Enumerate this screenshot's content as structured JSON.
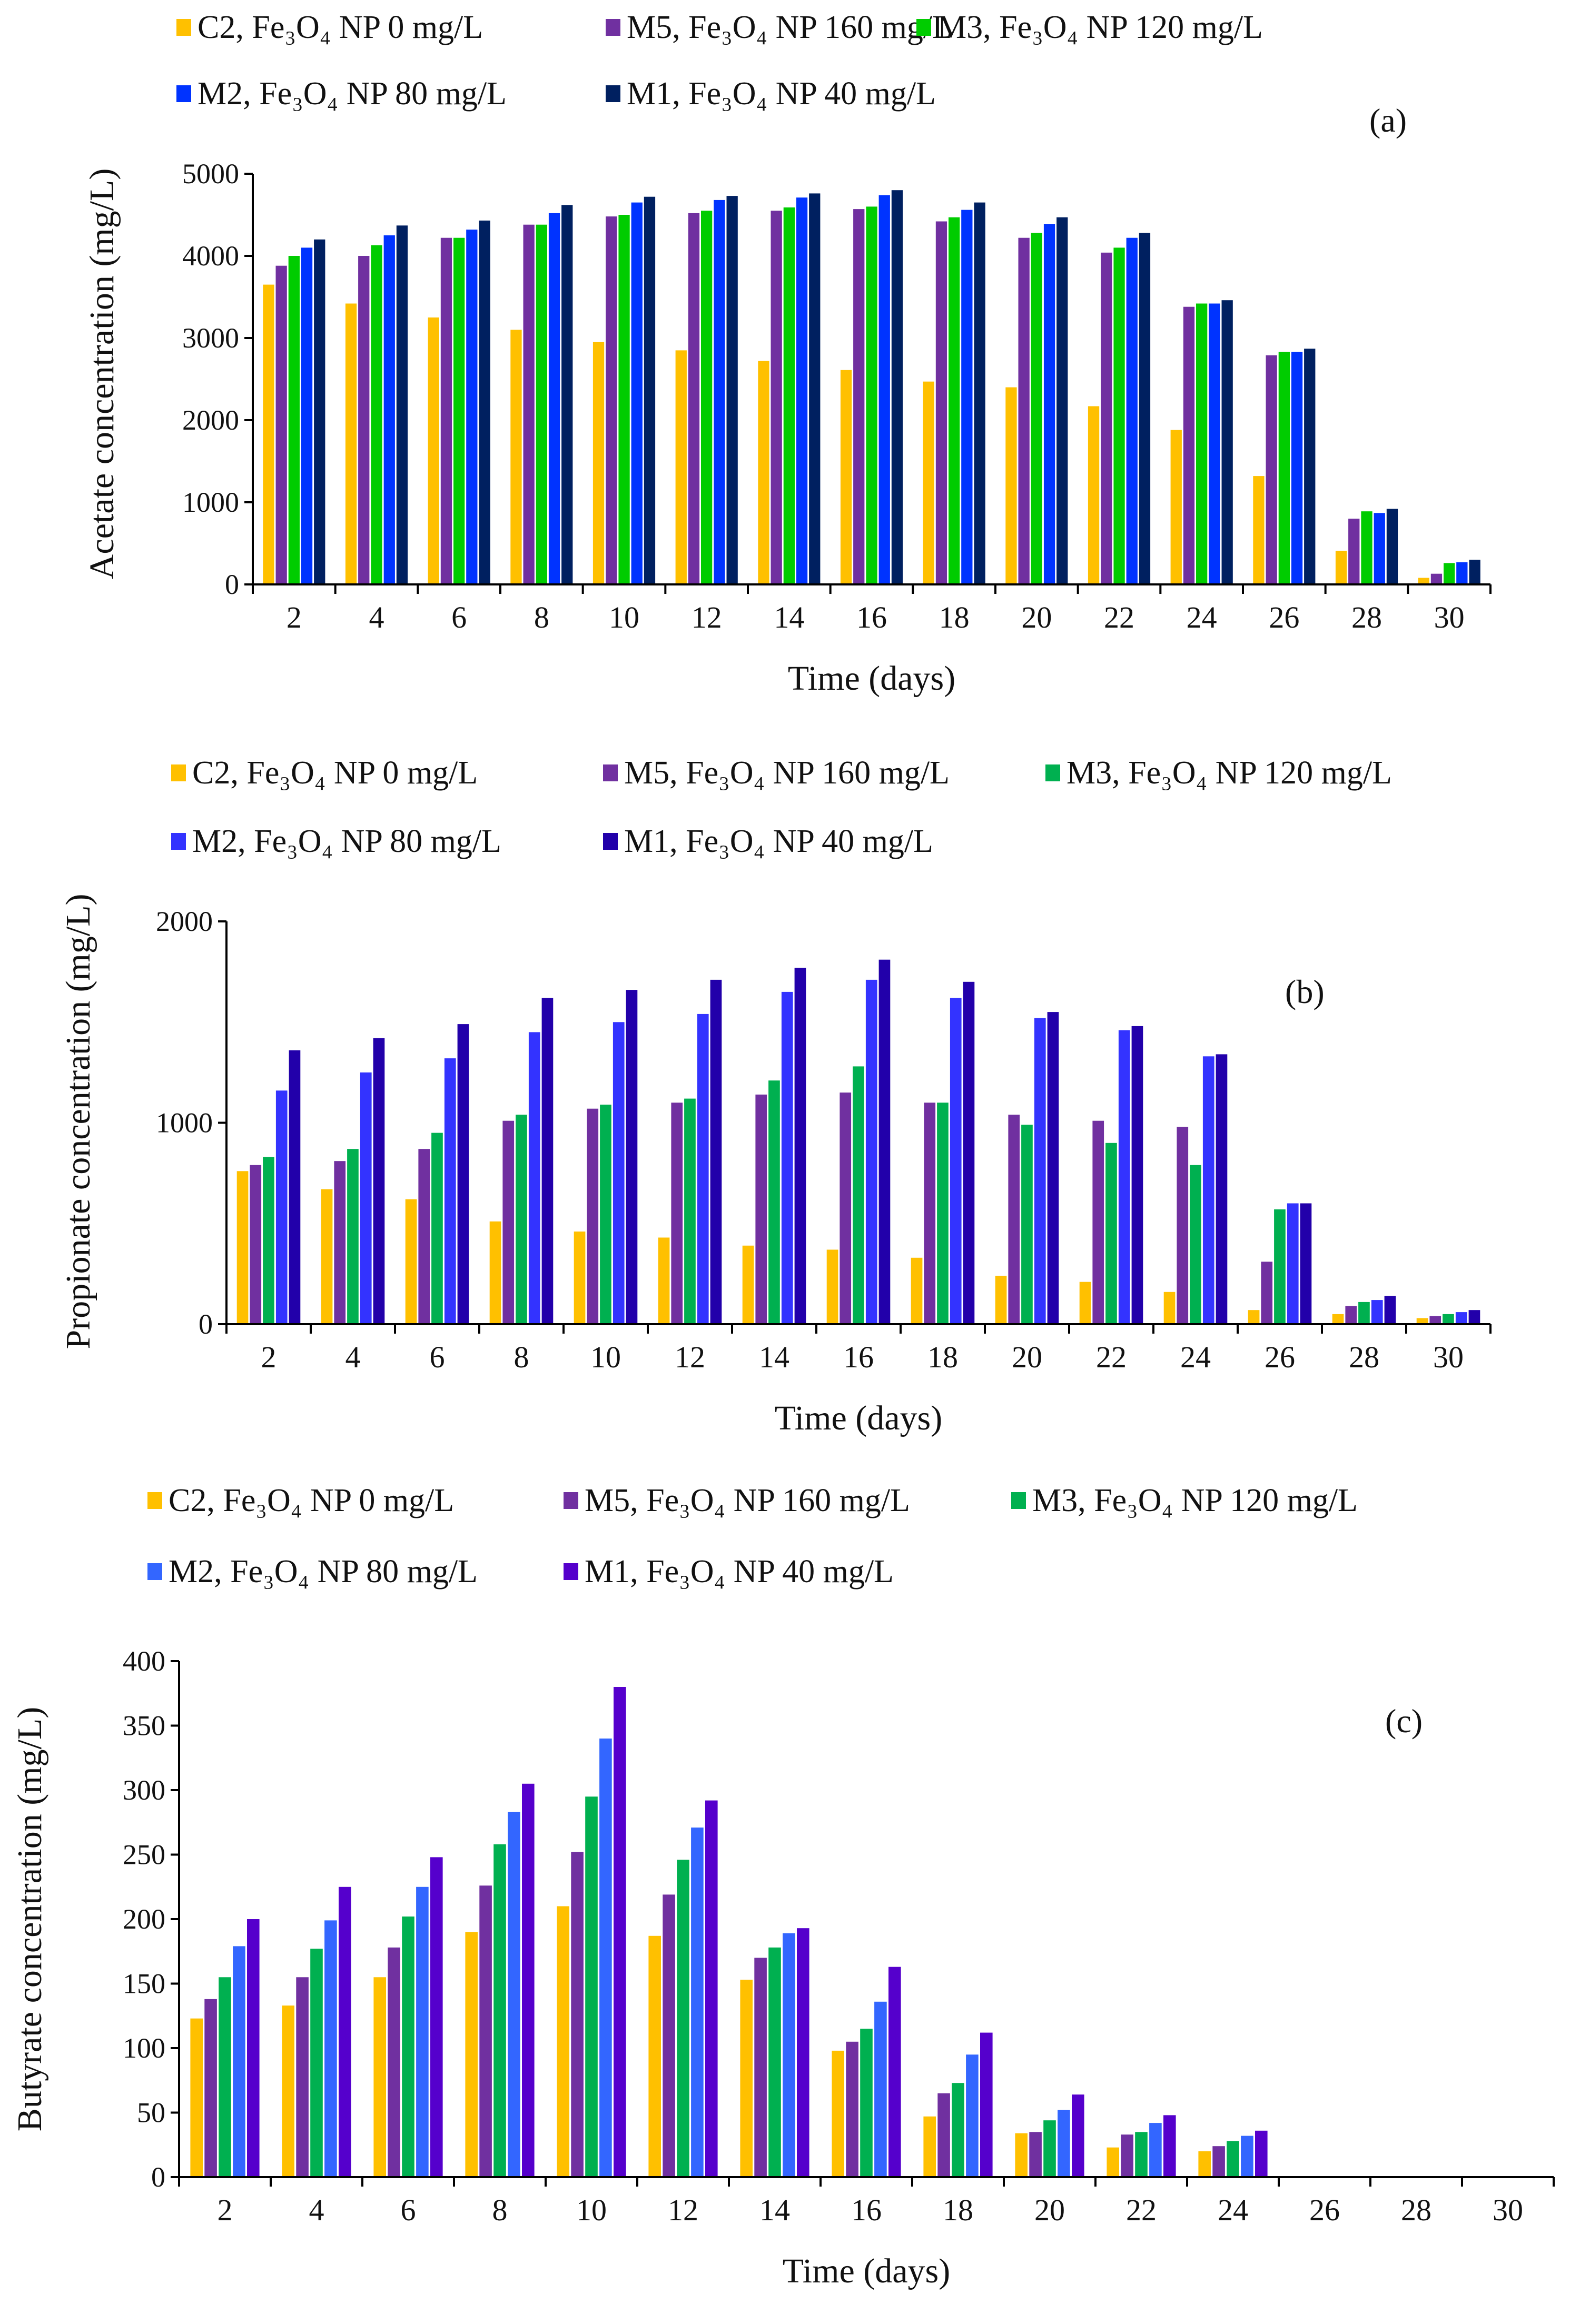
{
  "chart_data": [
    {
      "type": "bar",
      "panel_label": "(a)",
      "xlabel": "Time (days)",
      "ylabel": "Acetate concentration (mg/L)",
      "ylim": [
        0,
        5000
      ],
      "yticks": [
        0,
        1000,
        2000,
        3000,
        4000,
        5000
      ],
      "categories": [
        "2",
        "4",
        "6",
        "8",
        "10",
        "12",
        "14",
        "16",
        "18",
        "20",
        "22",
        "24",
        "26",
        "28",
        "30"
      ],
      "legend": {
        "position": "top"
      },
      "series": [
        {
          "name": "C2, Fe₃O₄ NP 0 mg/L",
          "color": "#FFC000",
          "values": [
            3650,
            3420,
            3250,
            3100,
            2950,
            2850,
            2720,
            2610,
            2470,
            2400,
            2170,
            1880,
            1320,
            410,
            80
          ]
        },
        {
          "name": "M5, Fe₃O₄ NP 160 mg/L",
          "color": "#7030A0",
          "values": [
            3880,
            4000,
            4220,
            4380,
            4480,
            4520,
            4550,
            4570,
            4420,
            4220,
            4040,
            3380,
            2790,
            800,
            130
          ]
        },
        {
          "name": "M3, Fe₃O₄ NP 120 mg/L",
          "color": "#00CC00",
          "values": [
            4000,
            4130,
            4220,
            4380,
            4500,
            4550,
            4590,
            4600,
            4470,
            4280,
            4100,
            3420,
            2830,
            890,
            260
          ]
        },
        {
          "name": "M2, Fe₃O₄ NP 80 mg/L",
          "color": "#0033FF",
          "values": [
            4100,
            4250,
            4320,
            4520,
            4650,
            4680,
            4710,
            4740,
            4560,
            4390,
            4220,
            3420,
            2830,
            870,
            270
          ]
        },
        {
          "name": "M1, Fe₃O₄ NP 40 mg/L",
          "color": "#002060",
          "values": [
            4200,
            4370,
            4430,
            4620,
            4720,
            4730,
            4760,
            4800,
            4650,
            4470,
            4280,
            3460,
            2870,
            920,
            300
          ]
        }
      ]
    },
    {
      "type": "bar",
      "panel_label": "(b)",
      "xlabel": "Time (days)",
      "ylabel": "Propionate concentration (mg/L)",
      "ylim": [
        0,
        2000
      ],
      "yticks": [
        0,
        1000,
        2000
      ],
      "categories": [
        "2",
        "4",
        "6",
        "8",
        "10",
        "12",
        "14",
        "16",
        "18",
        "20",
        "22",
        "24",
        "26",
        "28",
        "30"
      ],
      "legend": {
        "position": "top"
      },
      "series": [
        {
          "name": "C2, Fe₃O₄ NP 0 mg/L",
          "color": "#FFC000",
          "values": [
            760,
            670,
            620,
            510,
            460,
            430,
            390,
            370,
            330,
            240,
            210,
            160,
            70,
            50,
            30
          ]
        },
        {
          "name": "M5, Fe₃O₄ NP 160 mg/L",
          "color": "#7030A0",
          "values": [
            790,
            810,
            870,
            1010,
            1070,
            1100,
            1140,
            1150,
            1100,
            1040,
            1010,
            980,
            310,
            90,
            40
          ]
        },
        {
          "name": "M3, Fe₃O₄ NP 120 mg/L",
          "color": "#00B050",
          "values": [
            830,
            870,
            950,
            1040,
            1090,
            1120,
            1210,
            1280,
            1100,
            990,
            900,
            790,
            570,
            110,
            50
          ]
        },
        {
          "name": "M2, Fe₃O₄ NP 80 mg/L",
          "color": "#3333FF",
          "values": [
            1160,
            1250,
            1320,
            1450,
            1500,
            1540,
            1650,
            1710,
            1620,
            1520,
            1460,
            1330,
            600,
            120,
            60
          ]
        },
        {
          "name": "M1, Fe₃O₄ NP 40 mg/L",
          "color": "#2200AA",
          "values": [
            1360,
            1420,
            1490,
            1620,
            1660,
            1710,
            1770,
            1810,
            1700,
            1550,
            1480,
            1340,
            600,
            140,
            70
          ]
        }
      ]
    },
    {
      "type": "bar",
      "panel_label": "(c)",
      "xlabel": "Time (days)",
      "ylabel": "Butyrate concentration (mg/L)",
      "ylim": [
        0,
        400
      ],
      "yticks": [
        0,
        50,
        100,
        150,
        200,
        250,
        300,
        350,
        400
      ],
      "categories": [
        "2",
        "4",
        "6",
        "8",
        "10",
        "12",
        "14",
        "16",
        "18",
        "20",
        "22",
        "24",
        "26",
        "28",
        "30"
      ],
      "legend": {
        "position": "top"
      },
      "series": [
        {
          "name": "C2, Fe₃O₄ NP 0 mg/L",
          "color": "#FFC000",
          "values": [
            123,
            133,
            155,
            190,
            210,
            187,
            153,
            98,
            47,
            34,
            23,
            20,
            0,
            0,
            0
          ]
        },
        {
          "name": "M5, Fe₃O₄ NP 160 mg/L",
          "color": "#7030A0",
          "values": [
            138,
            155,
            178,
            226,
            252,
            219,
            170,
            105,
            65,
            35,
            33,
            24,
            0,
            0,
            0
          ]
        },
        {
          "name": "M3, Fe₃O₄ NP 120 mg/L",
          "color": "#00B050",
          "values": [
            155,
            177,
            202,
            258,
            295,
            246,
            178,
            115,
            73,
            44,
            35,
            28,
            0,
            0,
            0
          ]
        },
        {
          "name": "M2, Fe₃O₄ NP 80 mg/L",
          "color": "#3366FF",
          "values": [
            179,
            199,
            225,
            283,
            340,
            271,
            189,
            136,
            95,
            52,
            42,
            32,
            0,
            0,
            0
          ]
        },
        {
          "name": "M1, Fe₃O₄ NP 40 mg/L",
          "color": "#5500CC",
          "values": [
            200,
            225,
            248,
            305,
            380,
            292,
            193,
            163,
            112,
            64,
            48,
            36,
            0,
            0,
            0
          ]
        }
      ]
    }
  ]
}
